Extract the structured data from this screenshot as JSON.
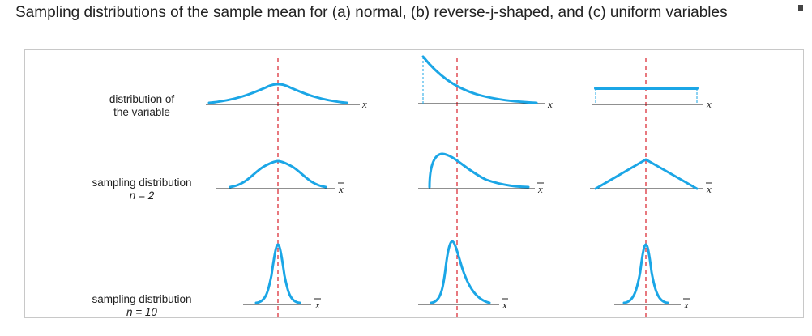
{
  "title": "Sampling distributions of the sample mean for (a) normal, (b) reverse-j-shaped, and (c) uniform variables",
  "rows": [
    {
      "line1": "distribution of",
      "line2": "the variable"
    },
    {
      "line1": "sampling distribution",
      "line2": "n = 2"
    },
    {
      "line1": "sampling distribution",
      "line2": "n = 10"
    }
  ],
  "axis_labels": {
    "variable": "x",
    "sample_mean": "x"
  },
  "columns": [
    "normal",
    "reverse-j-shaped",
    "uniform"
  ],
  "colors": {
    "curve": "#1ba6e6",
    "mean_line": "#d9202a",
    "axis": "#222222",
    "frame": "#c8c8c8"
  }
}
